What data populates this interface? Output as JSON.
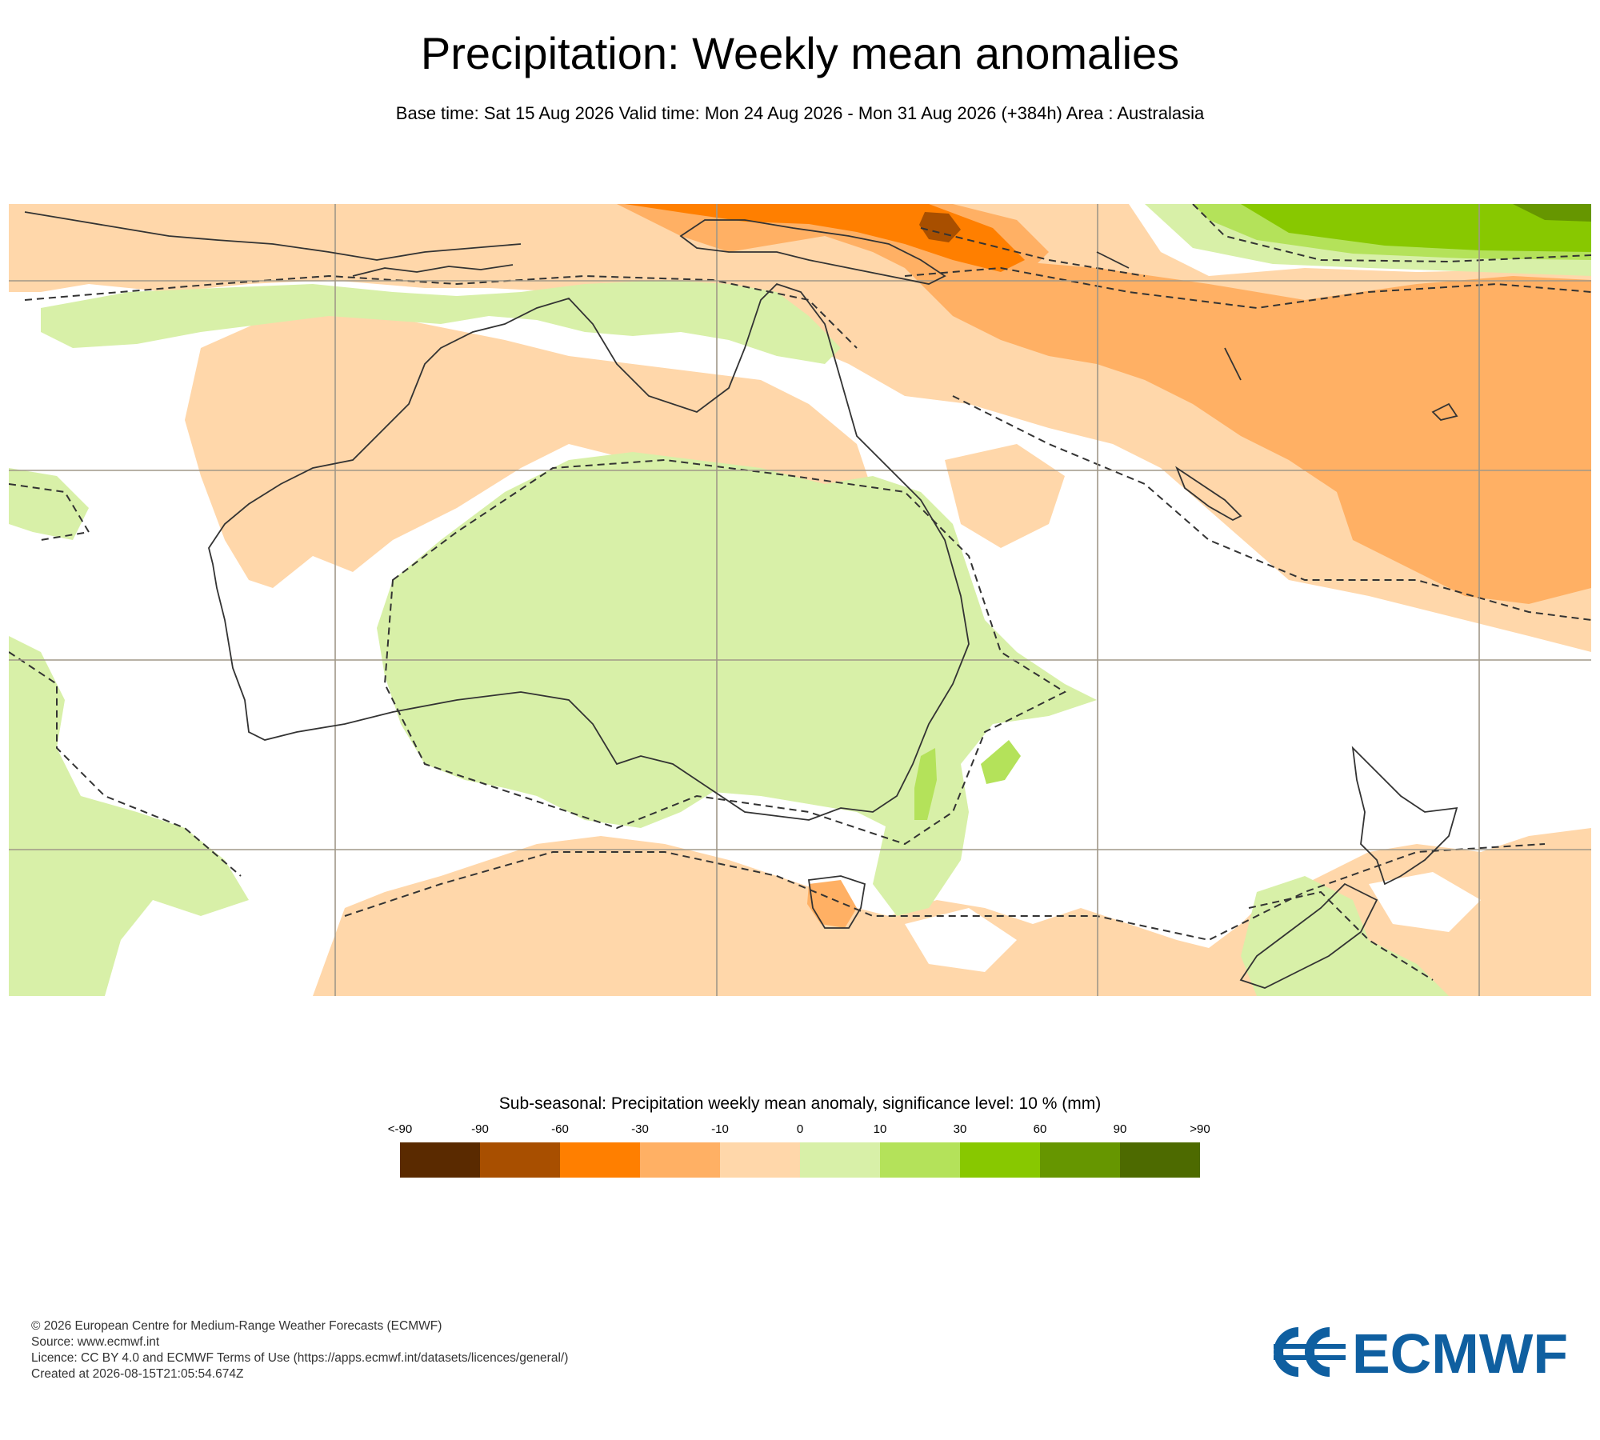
{
  "header": {
    "title": "Precipitation: Weekly mean anomalies",
    "subtitle": "Base time: Sat 15 Aug 2026 Valid time: Mon 24 Aug 2026 - Mon 31 Aug 2026 (+384h) Area : Australasia"
  },
  "map": {
    "area": "Australasia",
    "significance_contour": "dashed",
    "colors": {
      "coast": "#333333",
      "grid": "#a09888",
      "no_anomaly": "#ffffff"
    }
  },
  "legend": {
    "title": "Sub-seasonal: Precipitation weekly mean anomaly, significance level: 10 % (mm)",
    "labels": [
      "<-90",
      "-90",
      "-60",
      "-30",
      "-10",
      "0",
      "10",
      "30",
      "60",
      "90",
      ">90"
    ],
    "colors": [
      "#5a2a00",
      "#a84f00",
      "#ff7f00",
      "#ffb064",
      "#ffd7aa",
      "#d8f0a8",
      "#b4e25a",
      "#88c800",
      "#669600",
      "#4d6a00"
    ]
  },
  "footer": {
    "lines": [
      "© 2026 European Centre for Medium-Range Weather Forecasts (ECMWF)",
      "Source: www.ecmwf.int",
      "Licence: CC BY 4.0 and ECMWF Terms of Use (https://apps.ecmwf.int/datasets/licences/general/)",
      "Created at 2026-08-15T21:05:54.674Z"
    ]
  },
  "logo": {
    "text": "ECMWF",
    "color": "#0f5fa0"
  }
}
